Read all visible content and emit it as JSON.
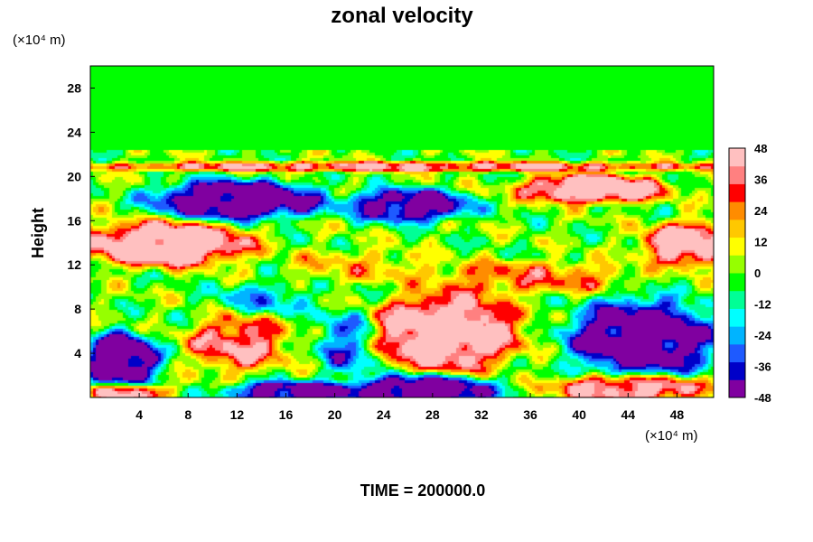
{
  "chart_data": {
    "type": "heatmap",
    "title": "zonal velocity",
    "ylabel": "Height",
    "x_unit": "(×10⁴ m)",
    "y_unit": "(×10⁴ m)",
    "footer": "TIME = 200000.0",
    "xlim": [
      0,
      51
    ],
    "ylim": [
      0,
      30
    ],
    "x_ticks": [
      4,
      8,
      12,
      16,
      20,
      24,
      28,
      32,
      36,
      40,
      44,
      48
    ],
    "y_ticks": [
      4,
      8,
      12,
      16,
      20,
      24,
      28
    ],
    "colorbar": {
      "min": -48,
      "max": 48,
      "ticks": [
        48,
        36,
        24,
        12,
        0,
        -12,
        -24,
        -36,
        -48
      ],
      "colors": [
        "#8000a0",
        "#0000c8",
        "#1e5aff",
        "#00b4ff",
        "#00ffff",
        "#00ff96",
        "#00ff00",
        "#96ff00",
        "#ffff00",
        "#ffc800",
        "#ff8c00",
        "#ff0000",
        "#ff8080",
        "#ffc0c0"
      ]
    },
    "field": {
      "background_value": 0,
      "regions": [
        {
          "x": 12,
          "y": 18,
          "rx": 7,
          "ry": 1.8,
          "v": -55
        },
        {
          "x": 26,
          "y": 17.5,
          "rx": 5,
          "ry": 1.5,
          "v": -50
        },
        {
          "x": 41,
          "y": 19,
          "rx": 6,
          "ry": 1.3,
          "v": 55
        },
        {
          "x": 6,
          "y": 14,
          "rx": 7,
          "ry": 2,
          "v": 55
        },
        {
          "x": 49,
          "y": 14,
          "rx": 4,
          "ry": 2,
          "v": 50
        },
        {
          "x": 29,
          "y": 6,
          "rx": 6,
          "ry": 3.5,
          "v": 55
        },
        {
          "x": 45,
          "y": 5.5,
          "rx": 6,
          "ry": 3.5,
          "v": -55
        },
        {
          "x": 2.5,
          "y": 3.5,
          "rx": 3,
          "ry": 2.5,
          "v": -55
        },
        {
          "x": 12,
          "y": 5,
          "rx": 4,
          "ry": 2.5,
          "v": 38
        },
        {
          "x": 27,
          "y": 0.8,
          "rx": 6,
          "ry": 1.4,
          "v": -55
        },
        {
          "x": 16,
          "y": 0.6,
          "rx": 5,
          "ry": 1,
          "v": -50
        },
        {
          "x": 3,
          "y": 0.6,
          "rx": 3,
          "ry": 0.8,
          "v": 50
        },
        {
          "x": 44,
          "y": 1,
          "rx": 6,
          "ry": 1.2,
          "v": 50
        },
        {
          "x": 14,
          "y": 9,
          "rx": 4,
          "ry": 1.5,
          "v": -20
        },
        {
          "x": 36,
          "y": 11,
          "rx": 8,
          "ry": 1.5,
          "v": 25
        },
        {
          "x": 22,
          "y": 12,
          "rx": 6,
          "ry": 1.5,
          "v": 15
        },
        {
          "x": 21,
          "y": 5,
          "rx": 2.5,
          "ry": 3,
          "v": -30
        },
        {
          "x": 25,
          "y": 21,
          "rx": 28,
          "ry": 0.45,
          "v": 40
        }
      ]
    }
  }
}
